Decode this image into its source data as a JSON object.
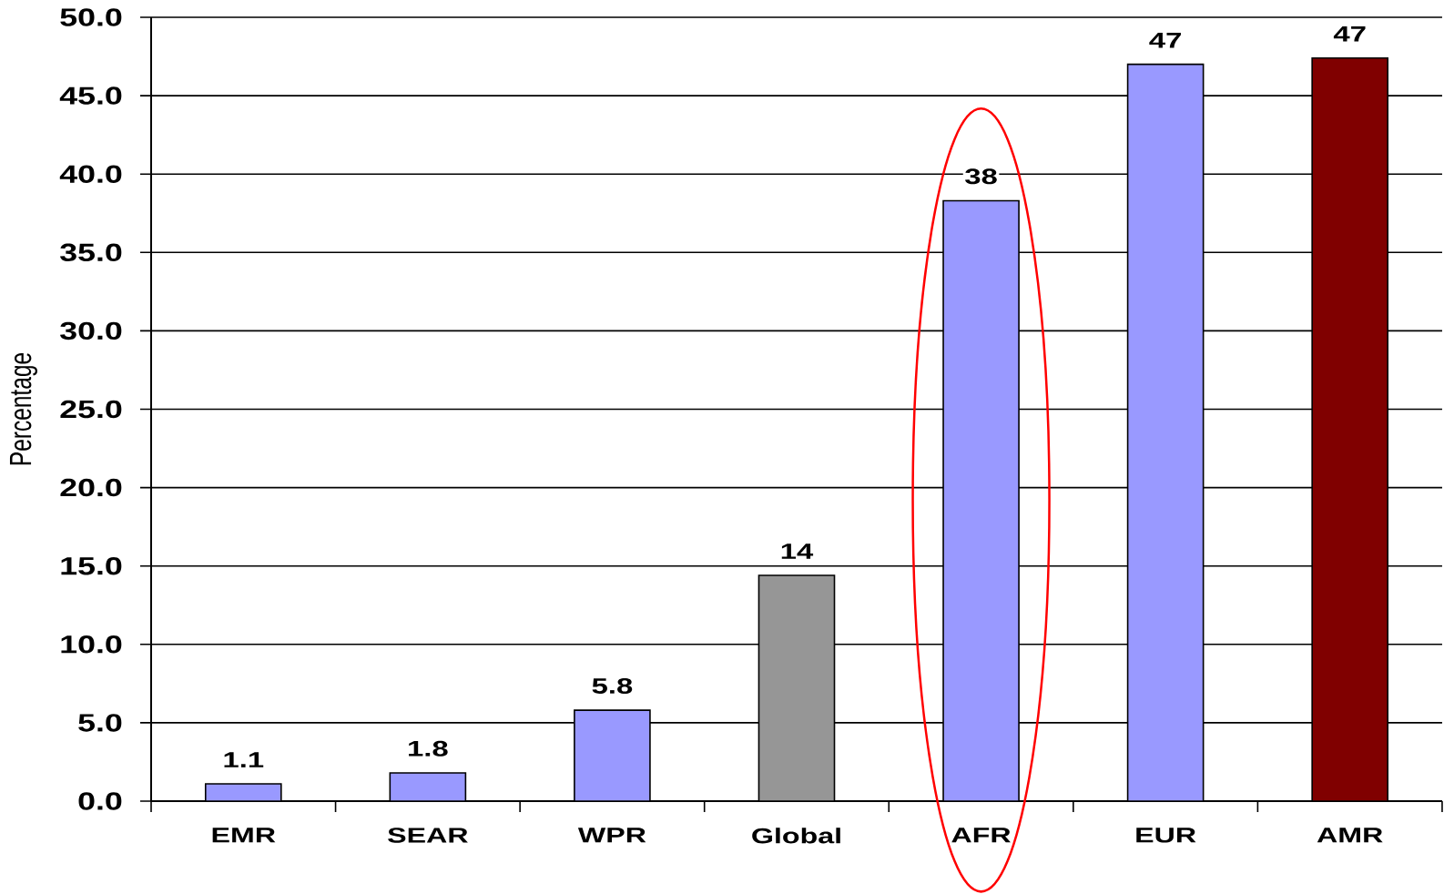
{
  "chart_data": {
    "type": "bar",
    "ylabel": "Percentage",
    "categories": [
      "EMR",
      "SEAR",
      "WPR",
      "Global",
      "AFR",
      "EUR",
      "AMR"
    ],
    "values": [
      1.1,
      1.8,
      5.8,
      14.4,
      38.3,
      47.0,
      47.4
    ],
    "colors": [
      "#9999ff",
      "#9999ff",
      "#9999ff",
      "#969696",
      "#9999ff",
      "#9999ff",
      "#800000"
    ],
    "value_labels": [
      "1.1",
      "1.8",
      "5.8",
      "14",
      "38",
      "47",
      "47"
    ],
    "ylim": [
      0,
      50
    ],
    "yticks": [
      {
        "value": 0,
        "label": "0.0"
      },
      {
        "value": 5,
        "label": "5.0"
      },
      {
        "value": 10,
        "label": "10.0"
      },
      {
        "value": 15,
        "label": "15.0"
      },
      {
        "value": 20,
        "label": "20.0"
      },
      {
        "value": 25,
        "label": "25.0"
      },
      {
        "value": 30,
        "label": "30.0"
      },
      {
        "value": 35,
        "label": "35.0"
      },
      {
        "value": 40,
        "label": "40.0"
      },
      {
        "value": 45,
        "label": "45.0"
      },
      {
        "value": 50,
        "label": "50.0"
      }
    ],
    "grid": "y"
  }
}
